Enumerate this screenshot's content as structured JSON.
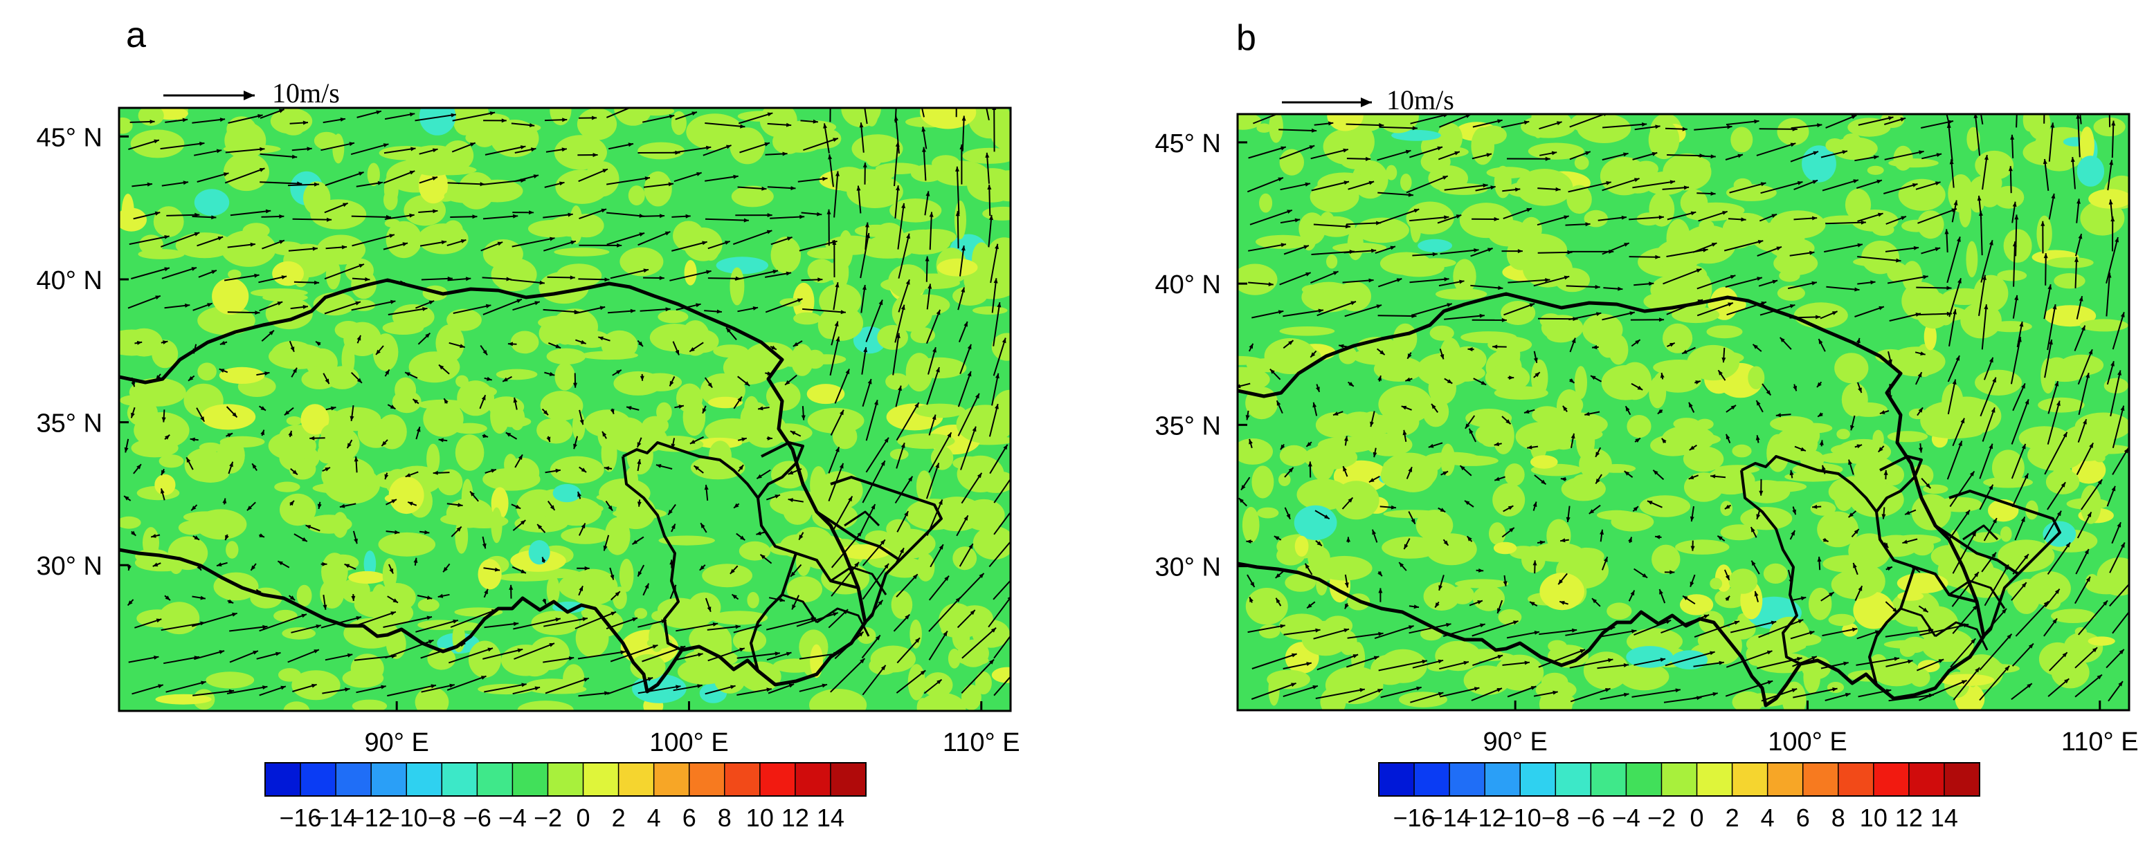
{
  "colors": {
    "frame": "#000000",
    "boundary": "#000000",
    "arrow": "#000000",
    "colorbar": [
      "#000e8c",
      "#0018d8",
      "#0a3cf4",
      "#1f6ef7",
      "#2a9ff7",
      "#2fd1f0",
      "#3ce8c8",
      "#3fe88a",
      "#41e05a",
      "#a8f03c",
      "#dff53a",
      "#f5d52f",
      "#f7a626",
      "#f77a1f",
      "#f24a18",
      "#f21a10",
      "#d00c0c",
      "#b00a0a"
    ]
  },
  "chart_data": [
    {
      "type": "heatmap",
      "panel_label": "a",
      "field": "filled-contour with wind vectors",
      "x_ticks": [
        {
          "value": 90,
          "label": "90° E"
        },
        {
          "value": 100,
          "label": "100° E"
        },
        {
          "value": 110,
          "label": "110° E"
        }
      ],
      "y_ticks": [
        {
          "value": 45,
          "label": "45° N"
        },
        {
          "value": 40,
          "label": "40° N"
        },
        {
          "value": 35,
          "label": "35° N"
        },
        {
          "value": 30,
          "label": "30° N"
        }
      ],
      "xlim": [
        80.5,
        111
      ],
      "ylim": [
        24.9,
        46
      ],
      "reference_vector": {
        "label": "10m/s",
        "speed": 10
      },
      "colorbar": {
        "levels": [
          -16,
          -14,
          -12,
          -10,
          -8,
          -6,
          -4,
          -2,
          0,
          2,
          4,
          6,
          8,
          10,
          12,
          14
        ],
        "tick_labels": [
          "−16",
          "−14",
          "−12",
          "−10",
          "−8",
          "−6",
          "−4",
          "−2",
          "0",
          "2",
          "4",
          "6",
          "8",
          "10",
          "12",
          "14"
        ]
      },
      "dominant_range": [
        -2,
        2
      ],
      "grid": false
    },
    {
      "type": "heatmap",
      "panel_label": "b",
      "field": "filled-contour with wind vectors",
      "x_ticks": [
        {
          "value": 90,
          "label": "90° E"
        },
        {
          "value": 100,
          "label": "100° E"
        },
        {
          "value": 110,
          "label": "110° E"
        }
      ],
      "y_ticks": [
        {
          "value": 45,
          "label": "45° N"
        },
        {
          "value": 40,
          "label": "40° N"
        },
        {
          "value": 35,
          "label": "35° N"
        },
        {
          "value": 30,
          "label": "30° N"
        }
      ],
      "xlim": [
        80.5,
        111
      ],
      "ylim": [
        24.9,
        46
      ],
      "reference_vector": {
        "label": "10m/s",
        "speed": 10
      },
      "colorbar": {
        "levels": [
          -16,
          -14,
          -12,
          -10,
          -8,
          -6,
          -4,
          -2,
          0,
          2,
          4,
          6,
          8,
          10,
          12,
          14
        ],
        "tick_labels": [
          "−16",
          "−14",
          "−12",
          "−10",
          "−8",
          "−6",
          "−4",
          "−2",
          "0",
          "2",
          "4",
          "6",
          "8",
          "10",
          "12",
          "14"
        ]
      },
      "dominant_range": [
        -2,
        2
      ],
      "grid": false
    }
  ]
}
